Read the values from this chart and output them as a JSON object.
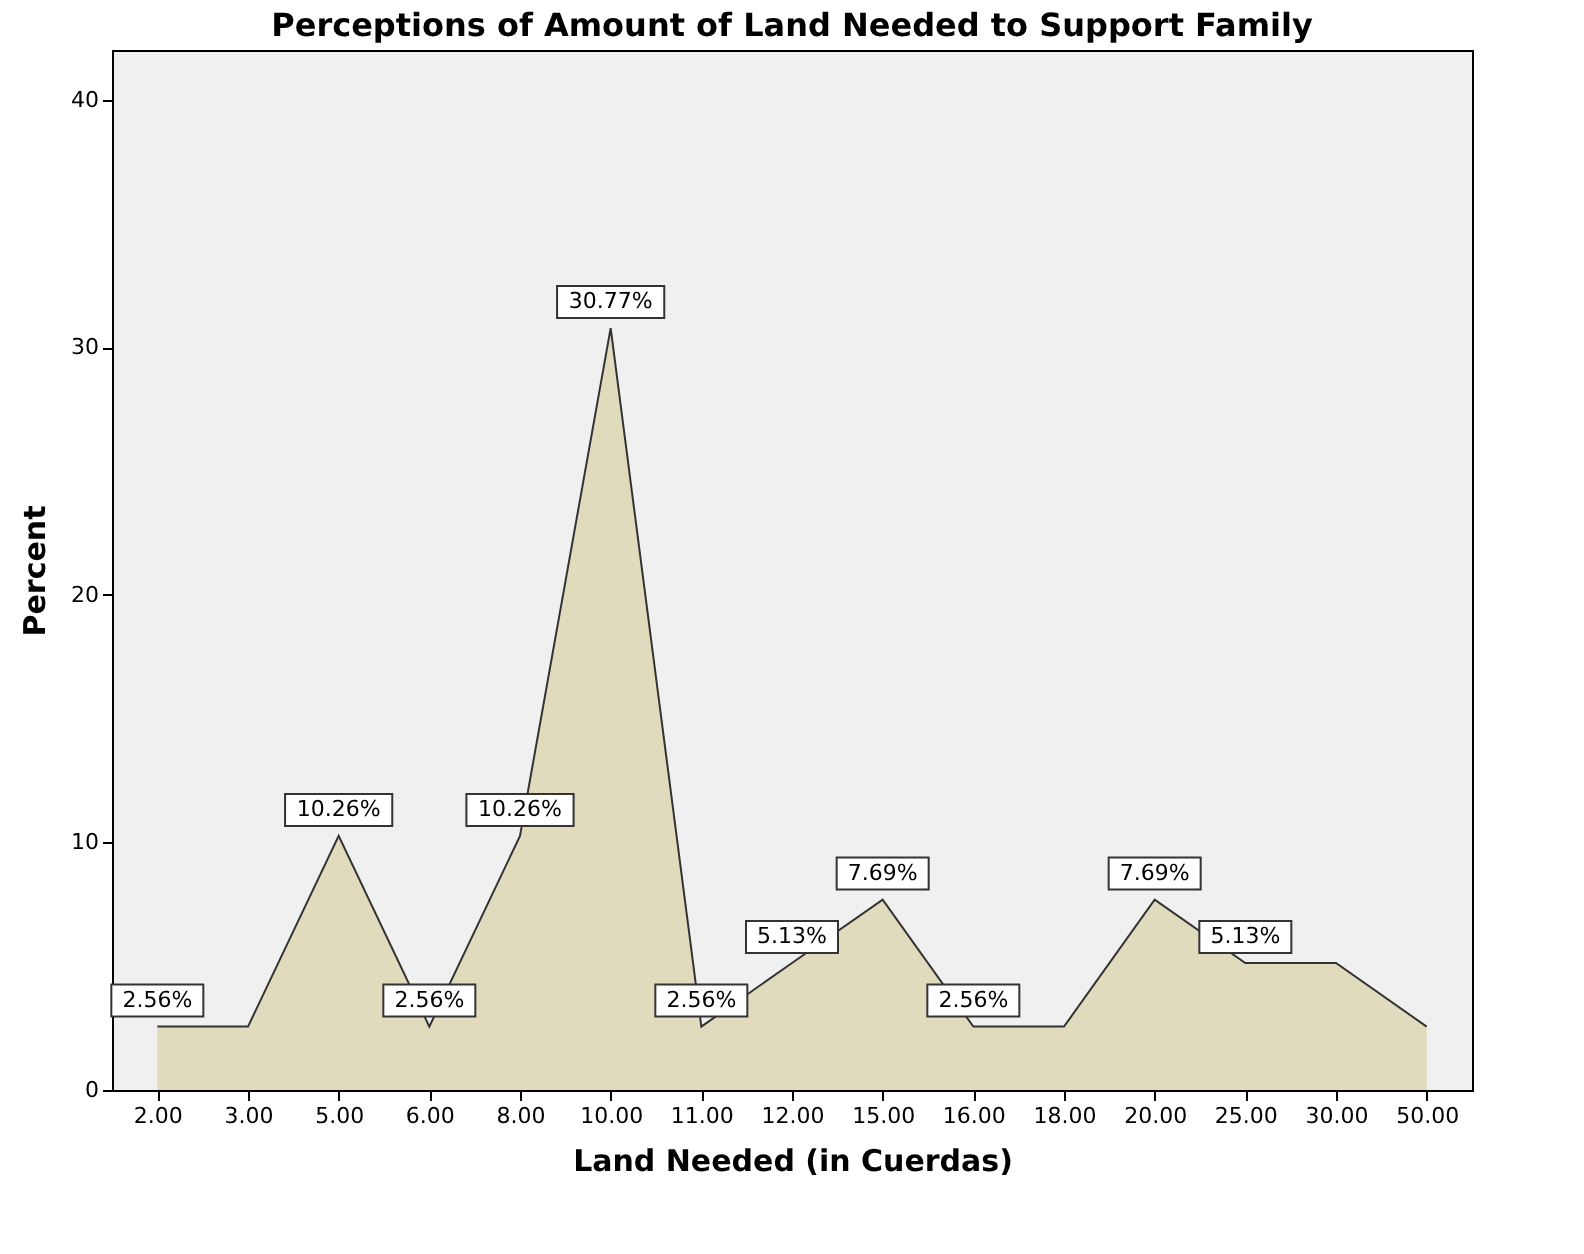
{
  "chart_data": {
    "type": "area",
    "title": "Perceptions of Amount of Land Needed to Support Family",
    "xlabel": "Land Needed (in Cuerdas)",
    "ylabel": "Percent",
    "categories": [
      "2.00",
      "3.00",
      "5.00",
      "6.00",
      "8.00",
      "10.00",
      "11.00",
      "12.00",
      "15.00",
      "16.00",
      "18.00",
      "20.00",
      "25.00",
      "30.00",
      "50.00"
    ],
    "values": [
      2.56,
      2.56,
      10.26,
      2.56,
      10.26,
      30.77,
      2.56,
      5.13,
      7.69,
      2.56,
      2.56,
      7.69,
      5.13,
      5.13,
      2.56
    ],
    "value_labels": [
      "2.56%",
      null,
      "10.26%",
      "2.56%",
      "10.26%",
      "30.77%",
      "2.56%",
      "5.13%",
      "7.69%",
      "2.56%",
      null,
      "7.69%",
      "5.13%",
      null,
      null
    ],
    "color": "#d9d1a7",
    "ylim": [
      0,
      42
    ],
    "yticks": [
      0,
      10,
      20,
      30,
      40
    ],
    "grid": false
  }
}
